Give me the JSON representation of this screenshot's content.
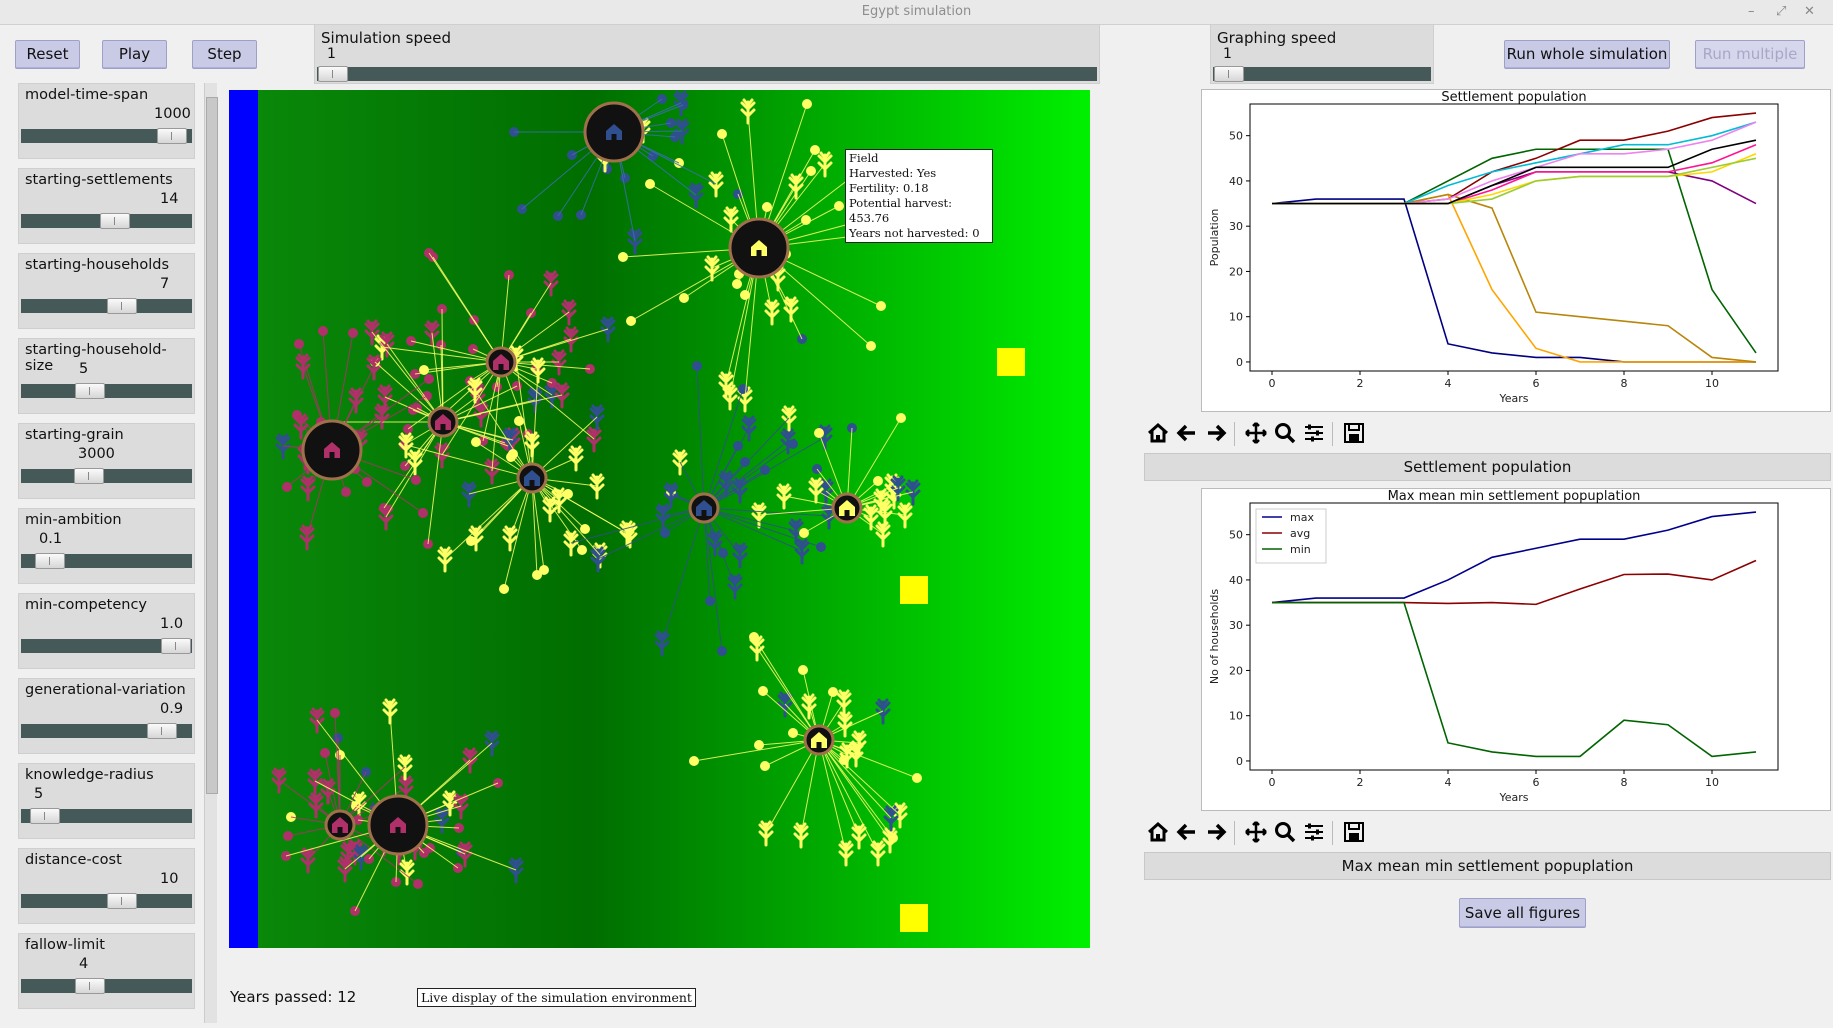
{
  "window": {
    "title": "Egypt simulation",
    "controls": [
      "–",
      "⤢",
      "✕"
    ]
  },
  "toolbar": {
    "reset_label": "Reset",
    "play_label": "Play",
    "step_label": "Step",
    "simulation_speed": {
      "label": "Simulation speed",
      "value": "1",
      "level": 0.0
    },
    "graphing_speed": {
      "label": "Graphing speed",
      "value": "1",
      "level": 0.0
    },
    "run_whole_label": "Run whole simulation",
    "run_multiple_label": "Run multiple"
  },
  "parameters": [
    {
      "name": "model-time-span",
      "value": "1000",
      "level": 0.95
    },
    {
      "name": "starting-settlements",
      "value": "14",
      "level": 0.55
    },
    {
      "name": "starting-households",
      "value": "7",
      "level": 0.6
    },
    {
      "name": "starting-household-size",
      "value": "5",
      "level": 0.38
    },
    {
      "name": "starting-grain",
      "value": "3000",
      "level": 0.37
    },
    {
      "name": "min-ambition",
      "value": "0.1",
      "level": 0.1
    },
    {
      "name": "min-competency",
      "value": "1.0",
      "level": 0.98
    },
    {
      "name": "generational-variation",
      "value": "0.9",
      "level": 0.88
    },
    {
      "name": "knowledge-radius",
      "value": "5",
      "level": 0.06
    },
    {
      "name": "distance-cost",
      "value": "10",
      "level": 0.6
    },
    {
      "name": "fallow-limit",
      "value": "4",
      "level": 0.38
    }
  ],
  "tooltip": {
    "title": "Field",
    "lines": [
      "Harvested: Yes",
      "Fertility: 0.18",
      "Potential harvest: 453.76",
      "Years not harvested: 0"
    ]
  },
  "status": {
    "years_passed": "Years passed: 12",
    "caption": "Live display of the simulation environment"
  },
  "colors": {
    "river": "#0000ff",
    "field_yellow": "#ffff66",
    "field_magenta": "#b0306a",
    "field_blue": "#2f4f8f",
    "settlement": "#111111",
    "button": "#c9cbe6"
  },
  "icons": [
    "home-icon",
    "back-arrow-icon",
    "forward-arrow-icon",
    "pan-icon",
    "zoom-icon",
    "configure-icon",
    "save-icon"
  ],
  "chart1_label": "Settlement population",
  "chart2_label": "Max mean min settlement popuplation",
  "save_all_label": "Save all figures",
  "chart_data": [
    {
      "type": "line",
      "title": "Settlement population",
      "xlabel": "Years",
      "ylabel": "Population",
      "xlim": [
        -0.5,
        11.5
      ],
      "ylim": [
        -2,
        57
      ],
      "xticks": [
        0,
        2,
        4,
        6,
        8,
        10
      ],
      "yticks": [
        0,
        10,
        20,
        30,
        40,
        50
      ],
      "grid": false,
      "x": [
        0,
        1,
        2,
        3,
        4,
        5,
        6,
        7,
        8,
        9,
        10,
        11
      ],
      "series": [
        {
          "color": "#000080",
          "values": [
            35,
            36,
            36,
            36,
            4,
            2,
            1,
            1,
            0,
            0,
            0,
            0
          ]
        },
        {
          "color": "#ffa500",
          "values": [
            35,
            35,
            35,
            35,
            37,
            16,
            3,
            0,
            0,
            0,
            0,
            0
          ]
        },
        {
          "color": "#b8860b",
          "values": [
            35,
            35,
            35,
            35,
            37,
            34,
            11,
            10,
            9,
            8,
            1,
            0
          ]
        },
        {
          "color": "#006400",
          "values": [
            35,
            35,
            35,
            35,
            40,
            45,
            47,
            47,
            47,
            47,
            16,
            2
          ]
        },
        {
          "color": "#8b0000",
          "values": [
            35,
            35,
            35,
            35,
            36,
            42,
            45,
            49,
            49,
            51,
            54,
            55
          ]
        },
        {
          "color": "#00bcd4",
          "values": [
            35,
            35,
            35,
            35,
            39,
            42,
            44,
            46,
            48,
            48,
            50,
            53
          ]
        },
        {
          "color": "#ee82ee",
          "values": [
            35,
            35,
            35,
            35,
            36,
            40,
            43,
            46,
            46,
            47,
            49,
            53
          ]
        },
        {
          "color": "#800080",
          "values": [
            35,
            35,
            35,
            35,
            35,
            39,
            42,
            42,
            42,
            42,
            40,
            35
          ]
        },
        {
          "color": "#ff1493",
          "values": [
            35,
            35,
            35,
            35,
            35,
            38,
            42,
            42,
            42,
            42,
            44,
            48
          ]
        },
        {
          "color": "#ffd700",
          "values": [
            35,
            35,
            35,
            35,
            35,
            37,
            40,
            41,
            41,
            41,
            42,
            46
          ]
        },
        {
          "color": "#9acd32",
          "values": [
            35,
            35,
            35,
            35,
            35,
            36,
            40,
            41,
            41,
            41,
            43,
            45
          ]
        },
        {
          "color": "#000000",
          "values": [
            35,
            35,
            35,
            35,
            35,
            39,
            43,
            43,
            43,
            43,
            47,
            49
          ]
        }
      ]
    },
    {
      "type": "line",
      "title": "Max mean min settlement popuplation",
      "xlabel": "Years",
      "ylabel": "No of households",
      "xlim": [
        -0.5,
        11.5
      ],
      "ylim": [
        -2,
        57
      ],
      "xticks": [
        0,
        2,
        4,
        6,
        8,
        10
      ],
      "yticks": [
        0,
        10,
        20,
        30,
        40,
        50
      ],
      "grid": false,
      "legend_position": "top-left",
      "x": [
        0,
        1,
        2,
        3,
        4,
        5,
        6,
        7,
        8,
        9,
        10,
        11
      ],
      "series": [
        {
          "name": "max",
          "color": "#00008b",
          "values": [
            35,
            36,
            36,
            36,
            40,
            45,
            47,
            49,
            49,
            51,
            54,
            55
          ]
        },
        {
          "name": "avg",
          "color": "#8b0000",
          "values": [
            35,
            35,
            35,
            35,
            34.8,
            35,
            34.6,
            38,
            41.2,
            41.3,
            40,
            44.3
          ]
        },
        {
          "name": "min",
          "color": "#006400",
          "values": [
            35,
            35,
            35,
            35,
            4,
            2,
            1,
            1,
            9,
            8,
            1,
            2
          ]
        }
      ]
    }
  ]
}
